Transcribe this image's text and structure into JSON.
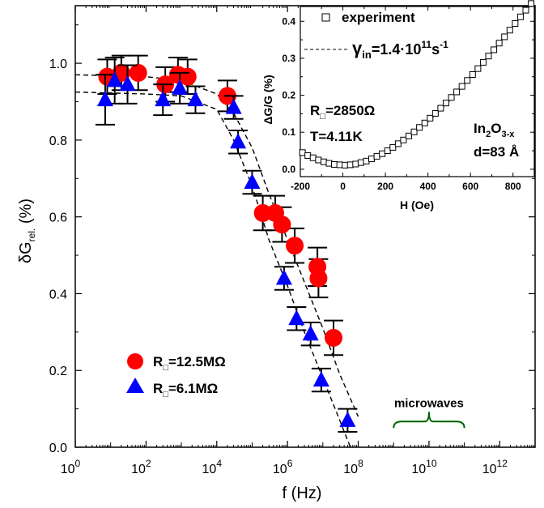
{
  "chart_data": [
    {
      "type": "scatter",
      "xlabel": "f (Hz)",
      "ylabel": "δG_rel. (%)",
      "xscale": "log",
      "xlim": [
        1,
        10000000000000.0
      ],
      "ylim": [
        0,
        1.15
      ],
      "x_ticks": [
        {
          "value": 1,
          "base": "10",
          "exp": "0"
        },
        {
          "value": 100,
          "base": "10",
          "exp": "2"
        },
        {
          "value": 10000,
          "base": "10",
          "exp": "4"
        },
        {
          "value": 1000000,
          "base": "10",
          "exp": "6"
        },
        {
          "value": 100000000,
          "base": "10",
          "exp": "8"
        },
        {
          "value": 10000000000,
          "base": "10",
          "exp": "10"
        },
        {
          "value": 1000000000000,
          "base": "10",
          "exp": "12"
        }
      ],
      "y_ticks": [
        "0.0",
        "0.2",
        "0.4",
        "0.6",
        "0.8",
        "1.0"
      ],
      "legend_position": "bottom-left",
      "series": [
        {
          "name_main": "R",
          "name_sub": "□",
          "name_rest": "=12.5MΩ",
          "marker": "circle",
          "color": "#ff0000",
          "points": [
            {
              "x": 8,
              "y": 0.965,
              "err": 0.045
            },
            {
              "x": 20,
              "y": 0.975,
              "err": 0.045
            },
            {
              "x": 60,
              "y": 0.975,
              "err": 0.045
            },
            {
              "x": 350,
              "y": 0.945,
              "err": 0.045
            },
            {
              "x": 800,
              "y": 0.97,
              "err": 0.045
            },
            {
              "x": 1500,
              "y": 0.965,
              "err": 0.045
            },
            {
              "x": 20000,
              "y": 0.915,
              "err": 0.04
            },
            {
              "x": 200000,
              "y": 0.61,
              "err": 0.045
            },
            {
              "x": 450000,
              "y": 0.61,
              "err": 0.045
            },
            {
              "x": 700000,
              "y": 0.58,
              "err": 0.045
            },
            {
              "x": 1600000,
              "y": 0.525,
              "err": 0.045
            },
            {
              "x": 7000000,
              "y": 0.47,
              "err": 0.05
            },
            {
              "x": 7500000,
              "y": 0.44,
              "err": 0.05
            },
            {
              "x": 20000000,
              "y": 0.285,
              "err": 0.045
            }
          ]
        },
        {
          "name_main": "R",
          "name_sub": "□",
          "name_rest": "=6.1MΩ",
          "marker": "triangle",
          "color": "#0000ff",
          "points": [
            {
              "x": 7,
              "y": 0.905,
              "err": 0.065
            },
            {
              "x": 13,
              "y": 0.955,
              "err": 0.06
            },
            {
              "x": 30,
              "y": 0.945,
              "err": 0.05
            },
            {
              "x": 300,
              "y": 0.905,
              "err": 0.04
            },
            {
              "x": 900,
              "y": 0.935,
              "err": 0.04
            },
            {
              "x": 2500,
              "y": 0.905,
              "err": 0.035
            },
            {
              "x": 30000,
              "y": 0.885,
              "err": 0.03
            },
            {
              "x": 40000,
              "y": 0.795,
              "err": 0.03
            },
            {
              "x": 100000,
              "y": 0.69,
              "err": 0.03
            },
            {
              "x": 800000,
              "y": 0.44,
              "err": 0.03
            },
            {
              "x": 1800000,
              "y": 0.335,
              "err": 0.03
            },
            {
              "x": 4500000,
              "y": 0.295,
              "err": 0.03
            },
            {
              "x": 9000000,
              "y": 0.175,
              "err": 0.03
            },
            {
              "x": 50000000,
              "y": 0.07,
              "err": 0.03
            }
          ]
        }
      ],
      "fit_curves": [
        {
          "style": "dashed",
          "points": [
            [
              1,
              0.97
            ],
            [
              100,
              0.965
            ],
            [
              1000,
              0.955
            ],
            [
              10000,
              0.92
            ],
            [
              30000,
              0.87
            ],
            [
              100000,
              0.78
            ],
            [
              300000,
              0.66
            ],
            [
              1000000,
              0.54
            ],
            [
              3000000,
              0.43
            ],
            [
              10000000,
              0.31
            ],
            [
              30000000,
              0.19
            ],
            [
              100000000,
              0.08
            ]
          ]
        },
        {
          "style": "dashed",
          "points": [
            [
              1,
              0.925
            ],
            [
              100,
              0.92
            ],
            [
              1000,
              0.915
            ],
            [
              10000,
              0.88
            ],
            [
              30000,
              0.8
            ],
            [
              100000,
              0.68
            ],
            [
              300000,
              0.54
            ],
            [
              1000000,
              0.42
            ],
            [
              3000000,
              0.3
            ],
            [
              10000000,
              0.18
            ],
            [
              30000000,
              0.07
            ],
            [
              60000000,
              0.0
            ]
          ]
        }
      ],
      "annotations": [
        {
          "text": "microwaves",
          "x_range": [
            1000000000.0,
            100000000000.0
          ],
          "y": 0.05
        }
      ]
    },
    {
      "type": "scatter",
      "xlabel": "H (Oe)",
      "ylabel": "ΔG/G (%)",
      "xlim": [
        -200,
        900
      ],
      "ylim": [
        -0.02,
        0.44
      ],
      "x_ticks": [
        "-200",
        "0",
        "200",
        "400",
        "600",
        "800"
      ],
      "y_ticks": [
        "0.0",
        "0.1",
        "0.2",
        "0.3",
        "0.4"
      ],
      "series": [
        {
          "name": "experiment",
          "marker": "open-square",
          "color": "#000000",
          "x": [
            -190,
            -165,
            -140,
            -115,
            -90,
            -65,
            -40,
            -15,
            10,
            35,
            60,
            85,
            110,
            135,
            160,
            185,
            210,
            235,
            260,
            285,
            310,
            335,
            360,
            385,
            410,
            435,
            460,
            485,
            510,
            535,
            560,
            585,
            610,
            635,
            660,
            685,
            710,
            735,
            760,
            785,
            810,
            835,
            860,
            885
          ],
          "y": [
            0.045,
            0.037,
            0.031,
            0.025,
            0.02,
            0.016,
            0.013,
            0.012,
            0.011,
            0.012,
            0.014,
            0.018,
            0.022,
            0.028,
            0.035,
            0.042,
            0.05,
            0.059,
            0.069,
            0.079,
            0.09,
            0.101,
            0.113,
            0.125,
            0.138,
            0.151,
            0.165,
            0.179,
            0.194,
            0.209,
            0.224,
            0.24,
            0.256,
            0.272,
            0.289,
            0.306,
            0.323,
            0.341,
            0.358,
            0.376,
            0.394,
            0.412,
            0.43,
            0.448
          ]
        },
        {
          "name_main": "γ",
          "name_sub": "in",
          "name_rest": "=1.4·10",
          "name_exp": "11",
          "name_unit": "s",
          "name_unit_exp": "-1",
          "style": "dashed",
          "x": [
            -200,
            -150,
            -100,
            -50,
            0,
            50,
            100,
            150,
            200,
            250,
            300,
            350,
            400,
            450,
            500,
            550,
            600,
            650,
            700,
            750,
            800,
            850,
            900
          ],
          "y": [
            0.042,
            0.03,
            0.02,
            0.013,
            0.01,
            0.013,
            0.02,
            0.03,
            0.047,
            0.062,
            0.083,
            0.104,
            0.128,
            0.155,
            0.184,
            0.215,
            0.248,
            0.283,
            0.318,
            0.353,
            0.387,
            0.42,
            0.455
          ]
        }
      ],
      "labels": {
        "r_main": "R",
        "r_sub": "□",
        "r_rest": "=2850Ω",
        "temperature": "T=4.11K",
        "mat_a": "In",
        "mat_sub1": "2",
        "mat_b": "O",
        "mat_sub2": "3-x",
        "thickness": "d=83 Å"
      }
    }
  ]
}
